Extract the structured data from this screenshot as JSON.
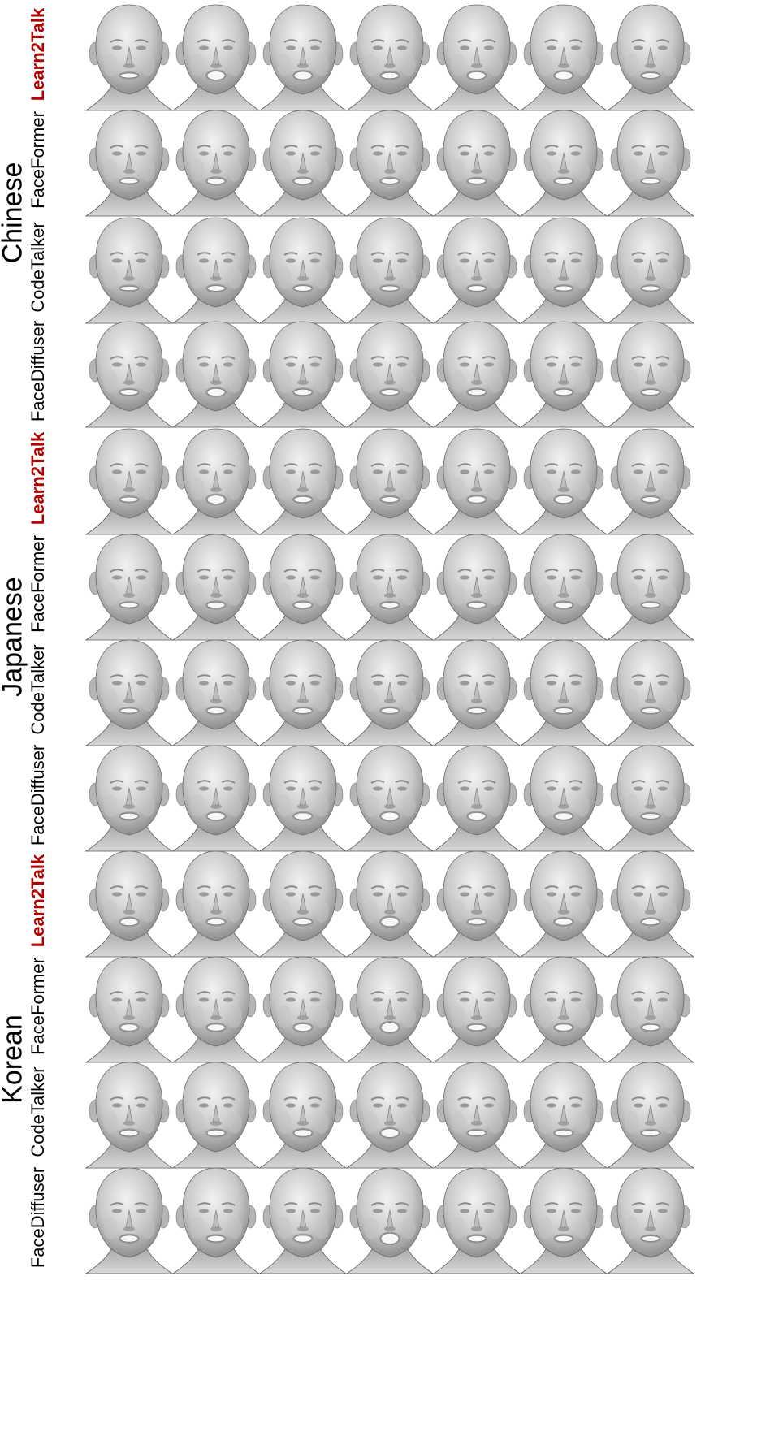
{
  "highlight_color": "#b00000",
  "face_icon": "rendered-3d-face-mesh",
  "groups": [
    {
      "language": "Chinese",
      "methods": [
        {
          "name": "Learn2Talk",
          "highlight": true,
          "mouth": [
            0.25,
            0.55,
            0.5,
            0.35,
            0.45,
            0.5,
            0.3
          ]
        },
        {
          "name": "FaceFormer",
          "highlight": false,
          "mouth": [
            0.25,
            0.35,
            0.35,
            0.3,
            0.3,
            0.3,
            0.25
          ]
        },
        {
          "name": "CodeTalker",
          "highlight": false,
          "mouth": [
            0.2,
            0.3,
            0.3,
            0.25,
            0.3,
            0.25,
            0.25
          ]
        },
        {
          "name": "FaceDiffuser",
          "highlight": false,
          "mouth": [
            0.3,
            0.45,
            0.35,
            0.3,
            0.35,
            0.35,
            0.3
          ]
        }
      ]
    },
    {
      "language": "Japanese",
      "methods": [
        {
          "name": "Learn2Talk",
          "highlight": true,
          "mouth": [
            0.25,
            0.55,
            0.35,
            0.3,
            0.4,
            0.45,
            0.3
          ]
        },
        {
          "name": "FaceFormer",
          "highlight": false,
          "mouth": [
            0.25,
            0.35,
            0.35,
            0.3,
            0.3,
            0.35,
            0.25
          ]
        },
        {
          "name": "CodeTalker",
          "highlight": false,
          "mouth": [
            0.25,
            0.35,
            0.3,
            0.3,
            0.3,
            0.3,
            0.3
          ]
        },
        {
          "name": "FaceDiffuser",
          "highlight": false,
          "mouth": [
            0.35,
            0.45,
            0.4,
            0.5,
            0.45,
            0.4,
            0.3
          ]
        }
      ]
    },
    {
      "language": "Korean",
      "methods": [
        {
          "name": "Learn2Talk",
          "highlight": true,
          "mouth": [
            0.45,
            0.35,
            0.35,
            0.6,
            0.3,
            0.4,
            0.35
          ]
        },
        {
          "name": "FaceFormer",
          "highlight": false,
          "mouth": [
            0.4,
            0.4,
            0.45,
            0.65,
            0.35,
            0.4,
            0.35
          ]
        },
        {
          "name": "CodeTalker",
          "highlight": false,
          "mouth": [
            0.35,
            0.35,
            0.4,
            0.55,
            0.3,
            0.35,
            0.3
          ]
        },
        {
          "name": "FaceDiffuser",
          "highlight": false,
          "mouth": [
            0.4,
            0.35,
            0.4,
            0.7,
            0.35,
            0.35,
            0.3
          ]
        }
      ]
    }
  ]
}
